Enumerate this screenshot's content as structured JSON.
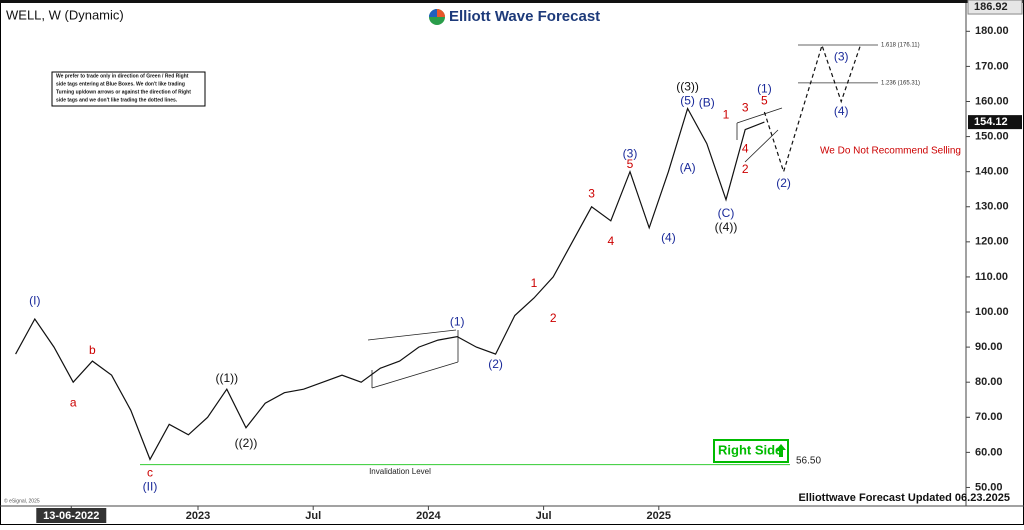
{
  "chart_data": {
    "type": "line",
    "title": "WELL, W (Dynamic)",
    "brand": "Elliott Wave Forecast",
    "footer": "Elliottwave Forecast Updated 06.23.2025",
    "copyright": "© eSignal, 2025",
    "note": [
      "We prefer to trade only in direction of Green / Red Right",
      "side tags entering at Blue Boxes. We don't like trading",
      "Turning up/down arrows or against the direction of Right",
      "side tags and we don't like trading the dotted lines."
    ],
    "x": [
      "2022-03",
      "2022-04",
      "2022-05",
      "2022-06",
      "2022-07",
      "2022-08",
      "2022-09",
      "2022-10",
      "2022-11",
      "2022-12",
      "2023-01",
      "2023-02",
      "2023-03",
      "2023-04",
      "2023-05",
      "2023-06",
      "2023-07",
      "2023-08",
      "2023-09",
      "2023-10",
      "2023-11",
      "2023-12",
      "2024-01",
      "2024-02",
      "2024-03",
      "2024-04",
      "2024-05",
      "2024-06",
      "2024-07",
      "2024-08",
      "2024-09",
      "2024-10",
      "2024-11",
      "2024-12",
      "2025-01",
      "2025-02",
      "2025-03",
      "2025-04",
      "2025-05",
      "2025-06"
    ],
    "values": [
      88,
      98,
      90,
      80,
      86,
      82,
      72,
      58,
      68,
      65,
      70,
      78,
      67,
      74,
      77,
      78,
      80,
      82,
      80,
      84,
      86,
      90,
      92,
      93,
      90,
      88,
      99,
      104,
      110,
      120,
      130,
      126,
      140,
      124,
      140,
      158,
      148,
      132,
      152,
      154.12
    ],
    "color": "#111111",
    "projection": {
      "x": [
        "2025-06",
        "2025-07",
        "2025-09",
        "2025-10",
        "2025-11"
      ],
      "values": [
        157,
        140,
        176,
        160,
        176
      ],
      "color": "#111111"
    },
    "xlim": [
      "2022-03",
      "2026-05"
    ],
    "xticks": [
      {
        "value": "2022-06-13",
        "label": "13-06-2022"
      },
      {
        "value": "2023-01",
        "label": "2023"
      },
      {
        "value": "2023-07",
        "label": "Jul"
      },
      {
        "value": "2024-01",
        "label": "2024"
      },
      {
        "value": "2024-07",
        "label": "Jul"
      },
      {
        "value": "2025-01",
        "label": "2025"
      }
    ],
    "ylim": [
      45,
      187.5
    ],
    "yticks": [
      {
        "value": 50,
        "label": "50.00"
      },
      {
        "value": 60,
        "label": "60.00"
      },
      {
        "value": 70,
        "label": "70.00"
      },
      {
        "value": 80,
        "label": "80.00"
      },
      {
        "value": 90,
        "label": "90.00"
      },
      {
        "value": 100,
        "label": "100.00"
      },
      {
        "value": 110,
        "label": "110.00"
      },
      {
        "value": 120,
        "label": "120.00"
      },
      {
        "value": 130,
        "label": "130.00"
      },
      {
        "value": 140,
        "label": "140.00"
      },
      {
        "value": 150,
        "label": "150.00"
      },
      {
        "value": 160,
        "label": "160.00"
      },
      {
        "value": 170,
        "label": "170.00"
      },
      {
        "value": 180,
        "label": "180.00"
      }
    ],
    "price_scale_top": 186.92,
    "fib_levels": [
      {
        "value": 176.11,
        "label": "1.618 (176.11)"
      },
      {
        "value": 165.31,
        "label": "1.236 (165.31)"
      }
    ],
    "invalidation": {
      "label": "Invalidation Level",
      "level": {
        "value": 56.5,
        "label": "56.50"
      },
      "color": "#33cc33"
    },
    "warning": {
      "text": "We Do Not Recommend Selling",
      "color": "#cc0000"
    },
    "signal": {
      "text": "Right Side",
      "color": "#00bb00"
    },
    "annotations": [
      {
        "text": "(I)",
        "x": "2022-04",
        "y": 103,
        "color": "#1a2a9a"
      },
      {
        "text": "a",
        "x": "2022-06",
        "y": 74,
        "color": "#cc0000"
      },
      {
        "text": "b",
        "x": "2022-07",
        "y": 89,
        "color": "#cc0000"
      },
      {
        "text": "c",
        "x": "2022-10",
        "y": 54,
        "color": "#cc0000"
      },
      {
        "text": "(II)",
        "x": "2022-10",
        "y": 50,
        "color": "#1a2a9a"
      },
      {
        "text": "((1))",
        "x": "2023-02",
        "y": 81,
        "color": "#111111"
      },
      {
        "text": "((2))",
        "x": "2023-03",
        "y": 62.5,
        "color": "#111111"
      },
      {
        "text": "(1)",
        "x": "2024-02",
        "y": 97,
        "color": "#1a2a9a"
      },
      {
        "text": "(2)",
        "x": "2024-04",
        "y": 85,
        "color": "#1a2a9a"
      },
      {
        "text": "1",
        "x": "2024-06",
        "y": 108,
        "color": "#cc0000"
      },
      {
        "text": "2",
        "x": "2024-07",
        "y": 98,
        "color": "#cc0000"
      },
      {
        "text": "3",
        "x": "2024-09",
        "y": 133.5,
        "color": "#cc0000"
      },
      {
        "text": "4",
        "x": "2024-10",
        "y": 120,
        "color": "#cc0000"
      },
      {
        "text": "(3)",
        "x": "2024-11",
        "y": 145,
        "color": "#1a2a9a"
      },
      {
        "text": "5",
        "x": "2024-11",
        "y": 142,
        "color": "#cc0000"
      },
      {
        "text": "(4)",
        "x": "2025-01",
        "y": 121,
        "color": "#1a2a9a"
      },
      {
        "text": "((3))",
        "x": "2025-02",
        "y": 164,
        "color": "#111111"
      },
      {
        "text": "(5)",
        "x": "2025-02",
        "y": 160,
        "color": "#1a2a9a"
      },
      {
        "text": "(A)",
        "x": "2025-02",
        "y": 141,
        "color": "#1a2a9a"
      },
      {
        "text": "(B)",
        "x": "2025-03",
        "y": 159.5,
        "color": "#1a2a9a"
      },
      {
        "text": "(C)",
        "x": "2025-04",
        "y": 128,
        "color": "#1a2a9a"
      },
      {
        "text": "((4))",
        "x": "2025-04",
        "y": 124,
        "color": "#111111"
      },
      {
        "text": "1",
        "x": "2025-04",
        "y": 156,
        "color": "#cc0000"
      },
      {
        "text": "2",
        "x": "2025-05",
        "y": 140.5,
        "color": "#cc0000"
      },
      {
        "text": "3",
        "x": "2025-05",
        "y": 158,
        "color": "#cc0000"
      },
      {
        "text": "4",
        "x": "2025-05",
        "y": 146.4,
        "color": "#cc0000"
      },
      {
        "text": "(1)",
        "x": "2025-06",
        "y": 163.5,
        "color": "#1a2a9a"
      },
      {
        "text": "5",
        "x": "2025-06",
        "y": 160,
        "color": "#cc0000"
      },
      {
        "text": "(2)",
        "x": "2025-07",
        "y": 136.5,
        "color": "#1a2a9a"
      },
      {
        "text": "(3)",
        "x": "2025-10",
        "y": 172.6,
        "color": "#1a2a9a"
      },
      {
        "text": "(4)",
        "x": "2025-10",
        "y": 157,
        "color": "#1a2a9a"
      }
    ]
  }
}
